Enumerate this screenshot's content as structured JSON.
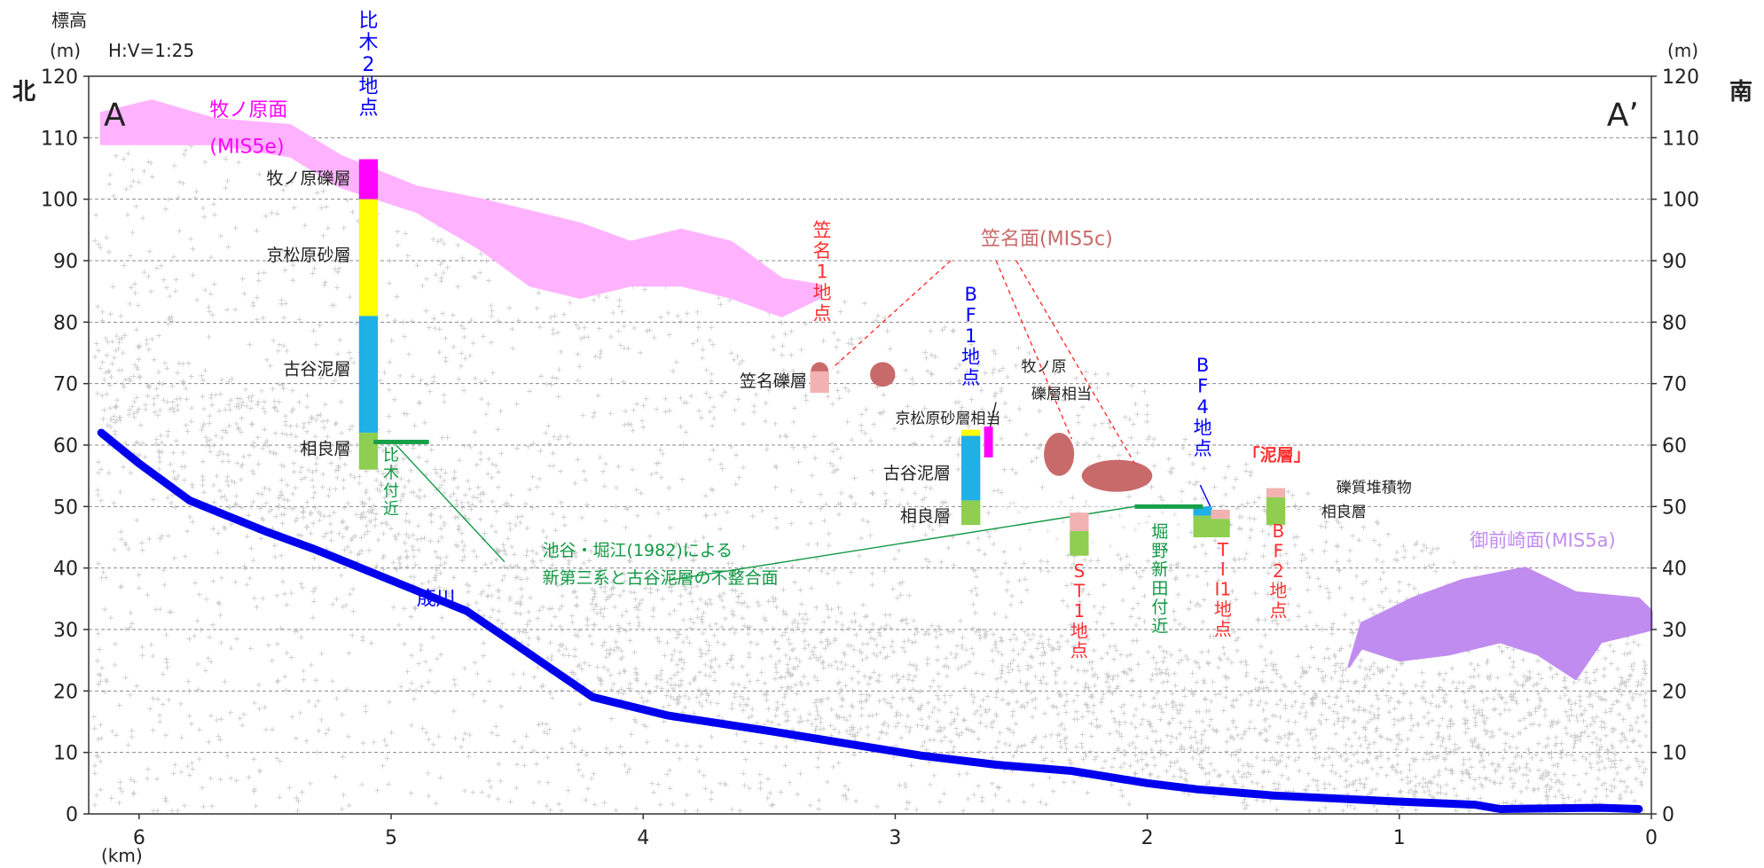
{
  "chart_data": {
    "type": "scatter",
    "title": "",
    "ylabel": "標高\n(m)",
    "ylabel_right": "(m)",
    "xlabel": "(km)",
    "scale_note": "H:V=1:25",
    "dir_left": "北",
    "dir_right": "南",
    "end_left": "A",
    "end_right": "A’",
    "xlim": [
      6.2,
      0
    ],
    "ylim": [
      0,
      120
    ],
    "x_ticks": [
      "6",
      "5",
      "4",
      "3",
      "2",
      "1",
      "0"
    ],
    "y_ticks": [
      "0",
      "10",
      "20",
      "30",
      "40",
      "50",
      "60",
      "70",
      "80",
      "90",
      "100",
      "110",
      "120"
    ],
    "grid": "horizontal dashed every 10 m",
    "colors": {
      "gray": "#b5b5b5",
      "river": "#0000ee",
      "makinohara": "#ffb3ff",
      "kasana": "#c96a6a",
      "omaezaki": "#c08cf0",
      "magenta": "#ff00ff",
      "yellow": "#ffff00",
      "cyan": "#1fb0e6",
      "green": "#8fce50",
      "pink": "#f2b2b2",
      "blue_text": "#0000ff",
      "red_text": "#ff3030",
      "green_text": "#119944"
    },
    "series": [
      {
        "name": "筬川",
        "kind": "river",
        "points": [
          [
            6.15,
            62
          ],
          [
            6.0,
            57
          ],
          [
            5.8,
            51
          ],
          [
            5.5,
            46
          ],
          [
            5.3,
            43
          ],
          [
            5.0,
            38
          ],
          [
            4.7,
            33
          ],
          [
            4.45,
            26
          ],
          [
            4.2,
            19
          ],
          [
            3.9,
            16
          ],
          [
            3.5,
            13.5
          ],
          [
            3.2,
            11.5
          ],
          [
            2.9,
            9.5
          ],
          [
            2.6,
            8
          ],
          [
            2.3,
            7
          ],
          [
            2.0,
            5
          ],
          [
            1.8,
            4
          ],
          [
            1.5,
            3
          ],
          [
            1.0,
            2
          ],
          [
            0.7,
            1.5
          ],
          [
            0.6,
            0.8
          ],
          [
            0.2,
            1
          ],
          [
            0.05,
            0.8
          ]
        ]
      },
      {
        "name": "牧ノ原面(MIS5e)",
        "kind": "terrace",
        "top": [
          [
            6.15,
            114
          ],
          [
            5.95,
            116
          ],
          [
            5.7,
            113
          ],
          [
            5.4,
            112
          ],
          [
            5.2,
            107
          ],
          [
            4.9,
            102
          ],
          [
            4.65,
            100
          ],
          [
            4.45,
            98
          ],
          [
            4.25,
            96
          ],
          [
            4.05,
            93
          ],
          [
            3.85,
            95
          ],
          [
            3.65,
            93
          ],
          [
            3.45,
            87
          ],
          [
            3.3,
            86
          ]
        ],
        "bottom": [
          [
            3.3,
            84
          ],
          [
            3.45,
            81
          ],
          [
            3.65,
            84
          ],
          [
            3.85,
            86
          ],
          [
            4.05,
            86
          ],
          [
            4.25,
            84
          ],
          [
            4.45,
            86
          ],
          [
            4.65,
            92
          ],
          [
            4.9,
            98
          ],
          [
            5.2,
            102
          ],
          [
            5.4,
            107
          ],
          [
            5.7,
            109
          ],
          [
            6.15,
            109
          ]
        ]
      },
      {
        "name": "御前崎面(MIS5a)",
        "kind": "terrace",
        "top": [
          [
            1.2,
            24
          ],
          [
            1.15,
            31
          ],
          [
            0.95,
            35
          ],
          [
            0.75,
            38
          ],
          [
            0.5,
            40
          ],
          [
            0.3,
            36
          ],
          [
            0.05,
            35
          ],
          [
            0.0,
            33
          ]
        ],
        "bottom": [
          [
            0.0,
            30
          ],
          [
            0.2,
            28
          ],
          [
            0.3,
            22
          ],
          [
            0.45,
            26
          ],
          [
            0.6,
            28
          ],
          [
            0.8,
            26
          ],
          [
            1.0,
            25
          ],
          [
            1.15,
            27
          ],
          [
            1.2,
            24
          ]
        ]
      },
      {
        "name": "笠名面(MIS5c)",
        "kind": "patches",
        "patches": [
          [
            3.3,
            72,
            0.035,
            1.5
          ],
          [
            3.05,
            71.5,
            0.05,
            2
          ],
          [
            2.35,
            58.5,
            0.06,
            3.5
          ],
          [
            2.12,
            55,
            0.14,
            2.6
          ]
        ]
      }
    ],
    "columns": [
      {
        "x": 5.09,
        "width": 0.075,
        "segments": [
          [
            106.5,
            100,
            "magenta"
          ],
          [
            100,
            81,
            "yellow"
          ],
          [
            81,
            62,
            "cyan"
          ],
          [
            62,
            56,
            "green"
          ]
        ]
      },
      {
        "x": 3.3,
        "width": 0.075,
        "segments": [
          [
            72,
            68.5,
            "pink"
          ]
        ]
      },
      {
        "x": 2.7,
        "width": 0.075,
        "segments": [
          [
            62.5,
            61.5,
            "yellow"
          ],
          [
            61.5,
            51,
            "cyan"
          ],
          [
            51,
            47,
            "green"
          ]
        ]
      },
      {
        "x": 2.63,
        "width": 0.035,
        "segments": [
          [
            63,
            58,
            "magenta"
          ]
        ]
      },
      {
        "x": 2.27,
        "width": 0.075,
        "segments": [
          [
            49,
            46,
            "pink"
          ],
          [
            46,
            42,
            "green"
          ]
        ]
      },
      {
        "x": 1.78,
        "width": 0.075,
        "segments": [
          [
            50,
            48.5,
            "cyan"
          ],
          [
            48.5,
            45,
            "green"
          ]
        ]
      },
      {
        "x": 1.71,
        "width": 0.075,
        "segments": [
          [
            49.5,
            48,
            "pink"
          ],
          [
            48,
            45,
            "green"
          ]
        ]
      },
      {
        "x": 1.49,
        "width": 0.075,
        "segments": [
          [
            53,
            51.5,
            "pink"
          ],
          [
            51.5,
            47,
            "green"
          ]
        ]
      }
    ],
    "unconformity_segments": [
      [
        5.07,
        4.85,
        60.5
      ],
      [
        2.05,
        1.78,
        50
      ]
    ],
    "annotations": [
      {
        "text": "牧ノ原面",
        "x": 5.72,
        "y": 113.5,
        "color": "magenta",
        "size": 22
      },
      {
        "text": "(MIS5e)",
        "x": 5.72,
        "y": 107.5,
        "color": "magenta",
        "size": 22
      },
      {
        "text": "比\n木\n2\n地\n点",
        "x": 5.09,
        "y": 128,
        "color": "blue_text",
        "size": 22,
        "vertical": true
      },
      {
        "text": "牧ノ原礫層",
        "x": 5.16,
        "y": 102.5,
        "color": "dark",
        "size": 19,
        "anchor": "end"
      },
      {
        "text": "京松原砂層",
        "x": 5.16,
        "y": 90,
        "color": "dark",
        "size": 19,
        "anchor": "end"
      },
      {
        "text": "古谷泥層",
        "x": 5.16,
        "y": 71.5,
        "color": "dark",
        "size": 19,
        "anchor": "end"
      },
      {
        "text": "相良層",
        "x": 5.16,
        "y": 58.5,
        "color": "dark",
        "size": 19,
        "anchor": "end"
      },
      {
        "text": "比\n木\n付\n近",
        "x": 5.0,
        "y": 57.5,
        "color": "green_text",
        "size": 18,
        "vertical": true
      },
      {
        "text": "笠\n名\n1\n地\n点",
        "x": 3.29,
        "y": 94,
        "color": "red_text",
        "size": 21,
        "vertical": true
      },
      {
        "text": "笠名面(MIS5c)",
        "x": 2.66,
        "y": 92.5,
        "color": "kasana",
        "size": 22
      },
      {
        "text": "笠名礫層",
        "x": 3.35,
        "y": 69.5,
        "color": "dark",
        "size": 19,
        "anchor": "end"
      },
      {
        "text": "B\nF\n1\n地\n点",
        "x": 2.7,
        "y": 83.5,
        "color": "blue_text",
        "size": 21,
        "vertical": true
      },
      {
        "text": "牧ノ原",
        "x": 2.5,
        "y": 72,
        "color": "dark",
        "size": 17
      },
      {
        "text": "礫層相当",
        "x": 2.46,
        "y": 67.5,
        "color": "dark",
        "size": 17
      },
      {
        "text": "京松原砂層相当",
        "x": 3.0,
        "y": 63.5,
        "color": "dark",
        "size": 17
      },
      {
        "text": "古谷泥層",
        "x": 2.78,
        "y": 54.5,
        "color": "dark",
        "size": 19,
        "anchor": "end"
      },
      {
        "text": "相良層",
        "x": 2.78,
        "y": 47.5,
        "color": "dark",
        "size": 19,
        "anchor": "end"
      },
      {
        "text": "B\nF\n4\n地\n点",
        "x": 1.78,
        "y": 72,
        "color": "blue_text",
        "size": 21,
        "vertical": true
      },
      {
        "text": "「泥層」",
        "x": 1.62,
        "y": 57.5,
        "color": "red_text",
        "size": 19,
        "bold": true
      },
      {
        "text": "礫質堆積物",
        "x": 1.25,
        "y": 52.3,
        "color": "dark",
        "size": 17
      },
      {
        "text": "相良層",
        "x": 1.31,
        "y": 48.3,
        "color": "dark",
        "size": 17
      },
      {
        "text": "S\nT\n1\n地\n点",
        "x": 2.27,
        "y": 38.5,
        "color": "red_text",
        "size": 20,
        "vertical": true
      },
      {
        "text": "堀\n野\n新\n田\n付\n近",
        "x": 1.95,
        "y": 45,
        "color": "green_text",
        "size": 19,
        "vertical": true
      },
      {
        "text": "T\nI\nI1\n地\n点",
        "x": 1.7,
        "y": 42,
        "color": "red_text",
        "size": 20,
        "vertical": true
      },
      {
        "text": "B\nF\n2\n地\n点",
        "x": 1.48,
        "y": 45,
        "color": "red_text",
        "size": 20,
        "vertical": true
      },
      {
        "text": "池谷・堀江(1982)による",
        "x": 4.4,
        "y": 42,
        "color": "green_text",
        "size": 19
      },
      {
        "text": "新第三系と古谷泥層の不整合面",
        "x": 4.4,
        "y": 37.5,
        "color": "green_text",
        "size": 19
      },
      {
        "text": "筬川",
        "x": 4.9,
        "y": 34,
        "color": "blue_text",
        "size": 22
      },
      {
        "text": "御前崎面(MIS5a)",
        "x": 0.72,
        "y": 43.5,
        "color": "omaezaki",
        "size": 21
      }
    ],
    "leaders": [
      {
        "points": [
          [
            2.78,
            90
          ],
          [
            3.25,
            72.5
          ]
        ],
        "color": "red_text",
        "dash": true
      },
      {
        "points": [
          [
            2.6,
            90
          ],
          [
            2.3,
            61
          ]
        ],
        "color": "red_text",
        "dash": true
      },
      {
        "points": [
          [
            2.52,
            90
          ],
          [
            2.05,
            57
          ]
        ],
        "color": "red_text",
        "dash": true
      },
      {
        "points": [
          [
            4.55,
            41
          ],
          [
            4.98,
            60
          ]
        ],
        "color": "green_text",
        "dash": false
      },
      {
        "points": [
          [
            3.9,
            38
          ],
          [
            2.05,
            50
          ]
        ],
        "color": "green_text",
        "dash": false
      },
      {
        "points": [
          [
            2.72,
            62
          ],
          [
            2.68,
            62.3
          ]
        ],
        "color": "dark",
        "dash": false
      },
      {
        "points": [
          [
            2.6,
            67
          ],
          [
            2.64,
            60
          ]
        ],
        "color": "dark",
        "dash": false
      },
      {
        "points": [
          [
            1.79,
            53.5
          ],
          [
            1.75,
            50
          ]
        ],
        "color": "blue_text",
        "dash": false
      }
    ]
  }
}
